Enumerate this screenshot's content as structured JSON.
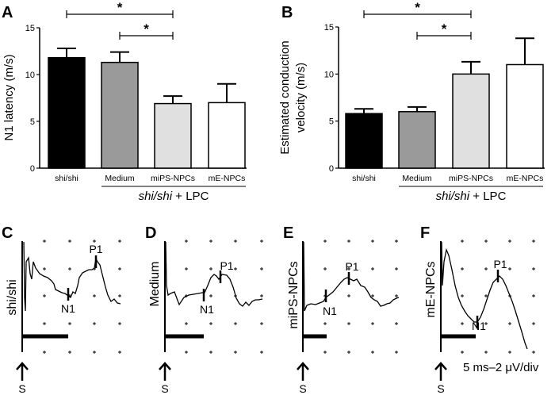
{
  "chart_data": [
    {
      "type": "bar",
      "panel": "A",
      "ylabel": "N1 latency (m/s)",
      "ylim": [
        0,
        15
      ],
      "yticks": [
        "0",
        "5",
        "10",
        "15"
      ],
      "categories": [
        "shi/shi",
        "Medium",
        "miPS-NPCs",
        "mE-NPCs"
      ],
      "values": [
        11.8,
        11.3,
        6.9,
        7.0
      ],
      "error_upper": [
        12.8,
        12.4,
        7.7,
        9.0
      ],
      "colors": [
        "#000000",
        "#9a9a9a",
        "#e0e0e0",
        "#ffffff"
      ],
      "group_label_italic": "shi/shi",
      "group_label_rest": " + LPC",
      "significance": [
        {
          "from": 0,
          "to": 2,
          "label": "*"
        },
        {
          "from": 1,
          "to": 2,
          "label": "*"
        }
      ]
    },
    {
      "type": "bar",
      "panel": "B",
      "ylabel": [
        "Estimated conduction",
        "velocity (m/s)"
      ],
      "ylim": [
        0,
        15
      ],
      "yticks": [
        "0",
        "5",
        "10",
        "15"
      ],
      "categories": [
        "shi/shi",
        "Medium",
        "miPS-NPCs",
        "mE-NPCs"
      ],
      "values": [
        5.8,
        6.0,
        10.0,
        11.0
      ],
      "error_upper": [
        6.3,
        6.5,
        11.3,
        13.8
      ],
      "colors": [
        "#000000",
        "#9a9a9a",
        "#e0e0e0",
        "#ffffff"
      ],
      "group_label_italic": "shi/shi",
      "group_label_rest": " + LPC",
      "significance": [
        {
          "from": 0,
          "to": 2,
          "label": "*"
        },
        {
          "from": 1,
          "to": 2,
          "label": "*"
        }
      ]
    }
  ],
  "traces": [
    {
      "panel": "C",
      "label": "shi/shi",
      "n1": "N1",
      "p1": "P1",
      "stim": "S"
    },
    {
      "panel": "D",
      "label": "Medium",
      "n1": "N1",
      "p1": "P1",
      "stim": "S"
    },
    {
      "panel": "E",
      "label": "miPS-NPCs",
      "n1": "N1",
      "p1": "P1",
      "stim": "S"
    },
    {
      "panel": "F",
      "label": "mE-NPCs",
      "n1": "N1",
      "p1": "P1",
      "stim": "S"
    }
  ],
  "scale_label": "5 ms–2 μV/div"
}
